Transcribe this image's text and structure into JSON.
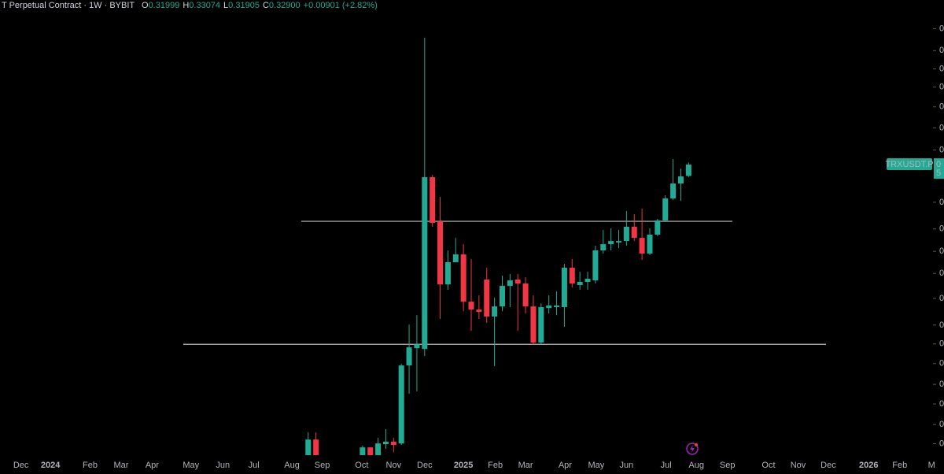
{
  "chart_data": {
    "type": "candlestick",
    "header": {
      "symbol": "T Perpetual Contract · 1W · BYBIT",
      "ohlc_labels": [
        "O",
        "H",
        "L",
        "C"
      ],
      "ohlc_values": [
        "0.31999",
        "0.33074",
        "0.31905",
        "0.32900"
      ],
      "change": "+0.00901 (+2.82%)"
    },
    "price_tag": {
      "name": "TRXUSDT.P",
      "lines": [
        "0",
        "5"
      ]
    },
    "up_color": "#22ab94",
    "down_color": "#f23645",
    "level_color": "#bdbdbd",
    "log_scale": true,
    "x": [
      37,
      38,
      44,
      45,
      46,
      47,
      48,
      49,
      50,
      51,
      52,
      53,
      54,
      55,
      56,
      57,
      58,
      59,
      60,
      61,
      62,
      63,
      64,
      65,
      66,
      67,
      68,
      69,
      70,
      71,
      72,
      73,
      74,
      75,
      76,
      77,
      78,
      79,
      80,
      81,
      82,
      83,
      84,
      85,
      86
    ],
    "open": [
      0.1614,
      0.1677,
      0.1614,
      0.1645,
      0.1614,
      0.1658,
      0.1668,
      0.1661,
      0.2011,
      0.2098,
      0.2094,
      0.319,
      0.2863,
      0.2453,
      0.259,
      0.264,
      0.2351,
      0.2306,
      0.2482,
      0.2267,
      0.2324,
      0.2444,
      0.2482,
      0.2458,
      0.2324,
      0.2127,
      0.2315,
      0.232,
      0.232,
      0.2555,
      0.2449,
      0.2468,
      0.2477,
      0.2666,
      0.2707,
      0.2718,
      0.2728,
      0.2825,
      0.2749,
      0.2645,
      0.2771,
      0.2869,
      0.3028,
      0.3141,
      0.31999
    ],
    "high": [
      0.1707,
      0.1707,
      0.1652,
      0.1645,
      0.1684,
      0.172,
      0.1684,
      0.2019,
      0.2223,
      0.2275,
      0.449,
      0.3208,
      0.304,
      0.2666,
      0.2749,
      0.2707,
      0.261,
      0.2388,
      0.2555,
      0.2374,
      0.2506,
      0.2516,
      0.2516,
      0.2496,
      0.2388,
      0.2342,
      0.2388,
      0.2411,
      0.258,
      0.261,
      0.253,
      0.253,
      0.2697,
      0.2803,
      0.2814,
      0.2803,
      0.2936,
      0.2913,
      0.2953,
      0.2814,
      0.288,
      0.3052,
      0.3335,
      0.3258,
      0.33074
    ],
    "low": [
      0.1614,
      0.1614,
      0.1614,
      0.1614,
      0.1614,
      0.1639,
      0.1626,
      0.1655,
      0.1876,
      0.1887,
      0.2058,
      0.2825,
      0.2254,
      0.2421,
      0.2605,
      0.2297,
      0.2189,
      0.2254,
      0.2232,
      0.2007,
      0.2297,
      0.232,
      0.2189,
      0.2284,
      0.2118,
      0.2118,
      0.2284,
      0.2275,
      0.2211,
      0.2435,
      0.2421,
      0.2421,
      0.2458,
      0.2645,
      0.2666,
      0.2681,
      0.2697,
      0.2728,
      0.2605,
      0.2635,
      0.276,
      0.2858,
      0.3016,
      0.301,
      0.31905
    ],
    "close": [
      0.1677,
      0.1614,
      0.1645,
      0.1614,
      0.1661,
      0.1668,
      0.1655,
      0.2011,
      0.2102,
      0.2118,
      0.319,
      0.2852,
      0.2453,
      0.259,
      0.264,
      0.2351,
      0.2306,
      0.2293,
      0.2267,
      0.2324,
      0.2444,
      0.2477,
      0.2458,
      0.2324,
      0.2127,
      0.232,
      0.2329,
      0.2329,
      0.2555,
      0.2458,
      0.2468,
      0.2487,
      0.2666,
      0.2707,
      0.2728,
      0.2728,
      0.2825,
      0.2749,
      0.2645,
      0.2771,
      0.2869,
      0.3028,
      0.3141,
      0.3196,
      0.329
    ],
    "levels": [
      0.2863,
      0.2118
    ],
    "xlim": [
      -2.7,
      118.9
    ],
    "xticks": [
      {
        "value": 0,
        "label": "Dec"
      },
      {
        "value": 3.8,
        "label": "2024"
      },
      {
        "value": 8.9,
        "label": "Feb"
      },
      {
        "value": 12.9,
        "label": "Mar"
      },
      {
        "value": 16.9,
        "label": "Apr"
      },
      {
        "value": 21.9,
        "label": "May"
      },
      {
        "value": 26,
        "label": "Jun"
      },
      {
        "value": 30,
        "label": "Jul"
      },
      {
        "value": 34.9,
        "label": "Aug"
      },
      {
        "value": 38.8,
        "label": "Sep"
      },
      {
        "value": 43.9,
        "label": "Oct"
      },
      {
        "value": 48,
        "label": "Nov"
      },
      {
        "value": 52,
        "label": "Dec"
      },
      {
        "value": 57,
        "label": "2025"
      },
      {
        "value": 61.1,
        "label": "Feb"
      },
      {
        "value": 65,
        "label": "Mar"
      },
      {
        "value": 70.1,
        "label": "Apr"
      },
      {
        "value": 74.1,
        "label": "May"
      },
      {
        "value": 78,
        "label": "Jun"
      },
      {
        "value": 83.1,
        "label": "Jul"
      },
      {
        "value": 87,
        "label": "Aug"
      },
      {
        "value": 91,
        "label": "Sep"
      },
      {
        "value": 96.3,
        "label": "Oct"
      },
      {
        "value": 100.1,
        "label": "Nov"
      },
      {
        "value": 104,
        "label": "Dec"
      },
      {
        "value": 109.2,
        "label": "2026"
      },
      {
        "value": 113.2,
        "label": "Feb"
      },
      {
        "value": 117.3,
        "label": "M"
      }
    ],
    "ylim": [
      0.1608,
      0.4925
    ],
    "yticks": [
      {
        "value": 0.459,
        "label": "0"
      },
      {
        "value": 0.435,
        "label": "0"
      },
      {
        "value": 0.416,
        "label": "0"
      },
      {
        "value": 0.398,
        "label": "0"
      },
      {
        "value": 0.379,
        "label": "0"
      },
      {
        "value": 0.36,
        "label": "0"
      },
      {
        "value": 0.341,
        "label": "0"
      },
      {
        "value": 0.3,
        "label": "0"
      },
      {
        "value": 0.281,
        "label": "0"
      },
      {
        "value": 0.266,
        "label": "0"
      },
      {
        "value": 0.252,
        "label": "0"
      },
      {
        "value": 0.237,
        "label": "0"
      },
      {
        "value": 0.222,
        "label": "0"
      },
      {
        "value": 0.212,
        "label": "0"
      },
      {
        "value": 0.202,
        "label": "0"
      },
      {
        "value": 0.192,
        "label": "0"
      },
      {
        "value": 0.183,
        "label": "0"
      },
      {
        "value": 0.174,
        "label": "0"
      },
      {
        "value": 0.166,
        "label": "0"
      }
    ]
  }
}
